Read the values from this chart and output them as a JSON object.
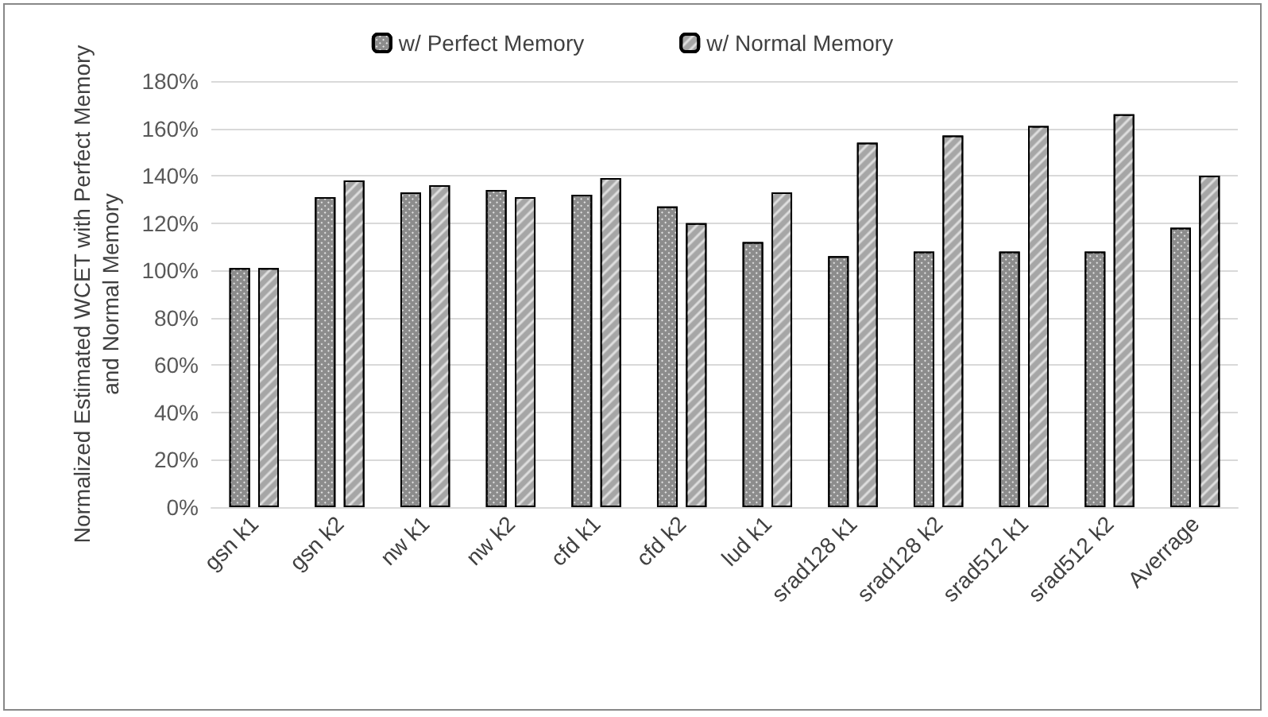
{
  "chart_data": {
    "type": "bar",
    "ylabel": "Normalized Estimated WCET with Perfect Memory and Normal Memory",
    "categories": [
      "gsn k1",
      "gsn k2",
      "nw k1",
      "nw k2",
      "cfd k1",
      "cfd k2",
      "lud k1",
      "srad128 k1",
      "srad128 k2",
      "srad512 k1",
      "srad512 k2",
      "Averrage"
    ],
    "series": [
      {
        "name": "w/ Perfect Memory",
        "color": "#8c8c8c",
        "values": [
          101,
          131,
          133,
          134,
          132,
          127,
          112,
          106,
          108,
          108,
          108,
          118
        ]
      },
      {
        "name": "w/ Normal Memory",
        "color": "#a6a6a6",
        "values": [
          101,
          138,
          136,
          131,
          139,
          120,
          133,
          154,
          157,
          161,
          166,
          140
        ]
      }
    ],
    "ylim": [
      0,
      180
    ],
    "yticks": [
      {
        "value": 0,
        "label": "0%"
      },
      {
        "value": 20,
        "label": "20%"
      },
      {
        "value": 40,
        "label": "40%"
      },
      {
        "value": 60,
        "label": "60%"
      },
      {
        "value": 80,
        "label": "80%"
      },
      {
        "value": 100,
        "label": "100%"
      },
      {
        "value": 120,
        "label": "120%"
      },
      {
        "value": 140,
        "label": "140%"
      },
      {
        "value": 160,
        "label": "160%"
      },
      {
        "value": 180,
        "label": "180%"
      }
    ],
    "grid": "y",
    "legend": "top"
  }
}
